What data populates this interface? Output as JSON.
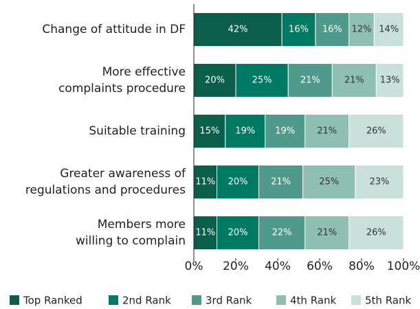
{
  "chart_data": {
    "type": "stacked-bar-horizontal",
    "categories": [
      [
        "Change of attitude in DF"
      ],
      [
        "More effective",
        "complaints procedure"
      ],
      [
        "Suitable training"
      ],
      [
        "Greater awareness of",
        "regulations and procedures"
      ],
      [
        "Members more",
        "willing to complain"
      ]
    ],
    "series": [
      {
        "name": "Top Ranked",
        "color": "#0b5e4a",
        "values": [
          42,
          20,
          15,
          11,
          11
        ],
        "value_labels": [
          "42%",
          "20%",
          "15%",
          "11%",
          "11%"
        ]
      },
      {
        "name": "2nd Rank",
        "color": "#007a63",
        "values": [
          16,
          25,
          19,
          20,
          20
        ],
        "value_labels": [
          "16%",
          "25%",
          "19%",
          "20%",
          "20%"
        ]
      },
      {
        "name": "3rd Rank",
        "color": "#4f9a8a",
        "values": [
          16,
          21,
          19,
          21,
          22
        ],
        "value_labels": [
          "16%",
          "21%",
          "19%",
          "21%",
          "22%"
        ]
      },
      {
        "name": "4th Rank",
        "color": "#8fbfb2",
        "values": [
          12,
          21,
          21,
          25,
          21
        ],
        "value_labels": [
          "12%",
          "21%",
          "21%",
          "25%",
          "21%"
        ]
      },
      {
        "name": "5th Rank",
        "color": "#c9e1da",
        "values": [
          14,
          13,
          26,
          23,
          26
        ],
        "value_labels": [
          "14%",
          "13%",
          "26%",
          "23%",
          "26%"
        ]
      }
    ],
    "xlim": [
      0,
      100
    ],
    "xticks": [
      {
        "value": 0,
        "label": "0%"
      },
      {
        "value": 20,
        "label": "20%"
      },
      {
        "value": 40,
        "label": "40%"
      },
      {
        "value": 60,
        "label": "60%"
      },
      {
        "value": 80,
        "label": "80%"
      },
      {
        "value": 100,
        "label": "100%"
      }
    ],
    "legend": "bottom"
  }
}
